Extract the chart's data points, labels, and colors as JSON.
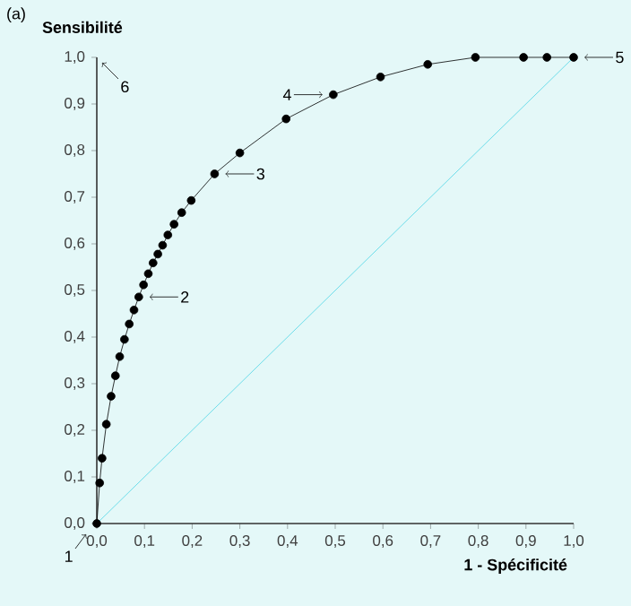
{
  "chart_data": {
    "type": "line",
    "title": "(a)",
    "ylabel": "Sensibilité",
    "xlabel": "1 - Spécificité",
    "xlim": [
      0,
      1
    ],
    "ylim": [
      0,
      1
    ],
    "xticks": [
      {
        "value": 0,
        "label": "0,0"
      },
      {
        "value": 0.1,
        "label": "0,1"
      },
      {
        "value": 0.2,
        "label": "0,2"
      },
      {
        "value": 0.3,
        "label": "0,3"
      },
      {
        "value": 0.4,
        "label": "0,4"
      },
      {
        "value": 0.5,
        "label": "0,5"
      },
      {
        "value": 0.6,
        "label": "0,6"
      },
      {
        "value": 0.7,
        "label": "0,7"
      },
      {
        "value": 0.8,
        "label": "0,8"
      },
      {
        "value": 0.9,
        "label": "0,9"
      },
      {
        "value": 1,
        "label": "1,0"
      }
    ],
    "yticks": [
      {
        "value": 0,
        "label": "0,0"
      },
      {
        "value": 0.1,
        "label": "0,1"
      },
      {
        "value": 0.2,
        "label": "0,2"
      },
      {
        "value": 0.3,
        "label": "0,3"
      },
      {
        "value": 0.4,
        "label": "0,4"
      },
      {
        "value": 0.5,
        "label": "0,5"
      },
      {
        "value": 0.6,
        "label": "0,6"
      },
      {
        "value": 0.7,
        "label": "0,7"
      },
      {
        "value": 0.8,
        "label": "0,8"
      },
      {
        "value": 0.9,
        "label": "0,9"
      },
      {
        "value": 1,
        "label": "1,0"
      }
    ],
    "series": [
      {
        "color": "#000000",
        "marker": "circle",
        "x": [
          0,
          0.006,
          0.011,
          0.02,
          0.03,
          0.039,
          0.048,
          0.058,
          0.068,
          0.078,
          0.088,
          0.098,
          0.108,
          0.118,
          0.128,
          0.138,
          0.149,
          0.162,
          0.178,
          0.198,
          0.247,
          0.3,
          0.397,
          0.496,
          0.595,
          0.694,
          0.794,
          0.895,
          0.944,
          1.0
        ],
        "values": [
          0,
          0.087,
          0.14,
          0.213,
          0.273,
          0.317,
          0.358,
          0.395,
          0.428,
          0.458,
          0.486,
          0.512,
          0.536,
          0.559,
          0.578,
          0.597,
          0.619,
          0.642,
          0.667,
          0.693,
          0.75,
          0.795,
          0.868,
          0.92,
          0.958,
          0.985,
          1.0,
          1.0,
          1.0,
          1.0
        ]
      },
      {
        "color": "#4fd6e6",
        "marker": "none",
        "x": [
          0,
          1
        ],
        "values": [
          0,
          1
        ]
      }
    ],
    "annotations": [
      {
        "text": "1",
        "x": 0,
        "y": 0
      },
      {
        "text": "2",
        "x": 0.088,
        "y": 0.486
      },
      {
        "text": "3",
        "x": 0.247,
        "y": 0.75
      },
      {
        "text": "4",
        "x": 0.496,
        "y": 0.92
      },
      {
        "text": "5",
        "x": 1.0,
        "y": 1.0
      },
      "6"
    ],
    "grid": false
  }
}
